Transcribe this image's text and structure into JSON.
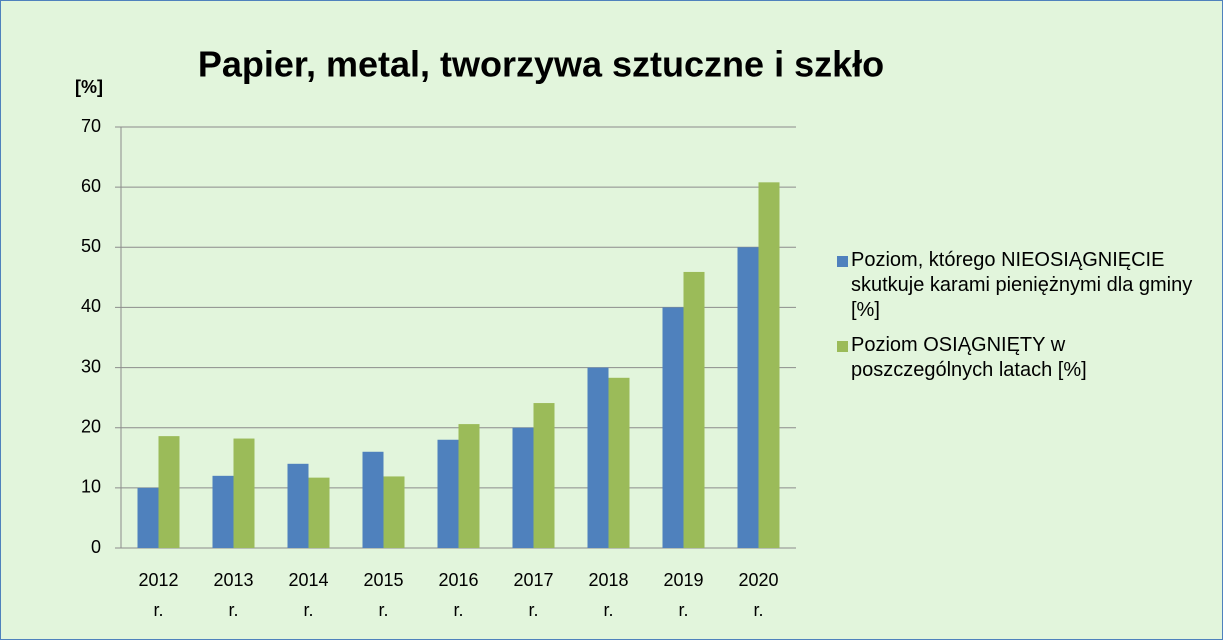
{
  "chart_data": {
    "type": "bar",
    "title": "Papier, metal, tworzywa sztuczne i szkło",
    "y_label": "[%]",
    "categories": [
      "2012 r.",
      "2013 r.",
      "2014 r.",
      "2015 r.",
      "2016 r.",
      "2017 r.",
      "2018 r.",
      "2019 r.",
      "2020 r."
    ],
    "series": [
      {
        "name": "Poziom, którego NIEOSIĄGNIĘCIE skutkuje karami pieniężnymi dla gminy [%]",
        "color": "#4f81bd",
        "values": [
          10,
          12,
          14,
          16,
          18,
          20,
          30,
          40,
          50
        ]
      },
      {
        "name": "Poziom OSIĄGNIĘTY w poszczególnych latach [%]",
        "color": "#9bbb59",
        "values": [
          18.6,
          18.2,
          11.7,
          11.9,
          20.6,
          24.1,
          28.3,
          45.9,
          60.8
        ]
      }
    ],
    "ylim": [
      0,
      70
    ],
    "yticks": [
      0,
      10,
      20,
      30,
      40,
      50,
      60,
      70
    ],
    "grid": true,
    "legend": "right"
  }
}
